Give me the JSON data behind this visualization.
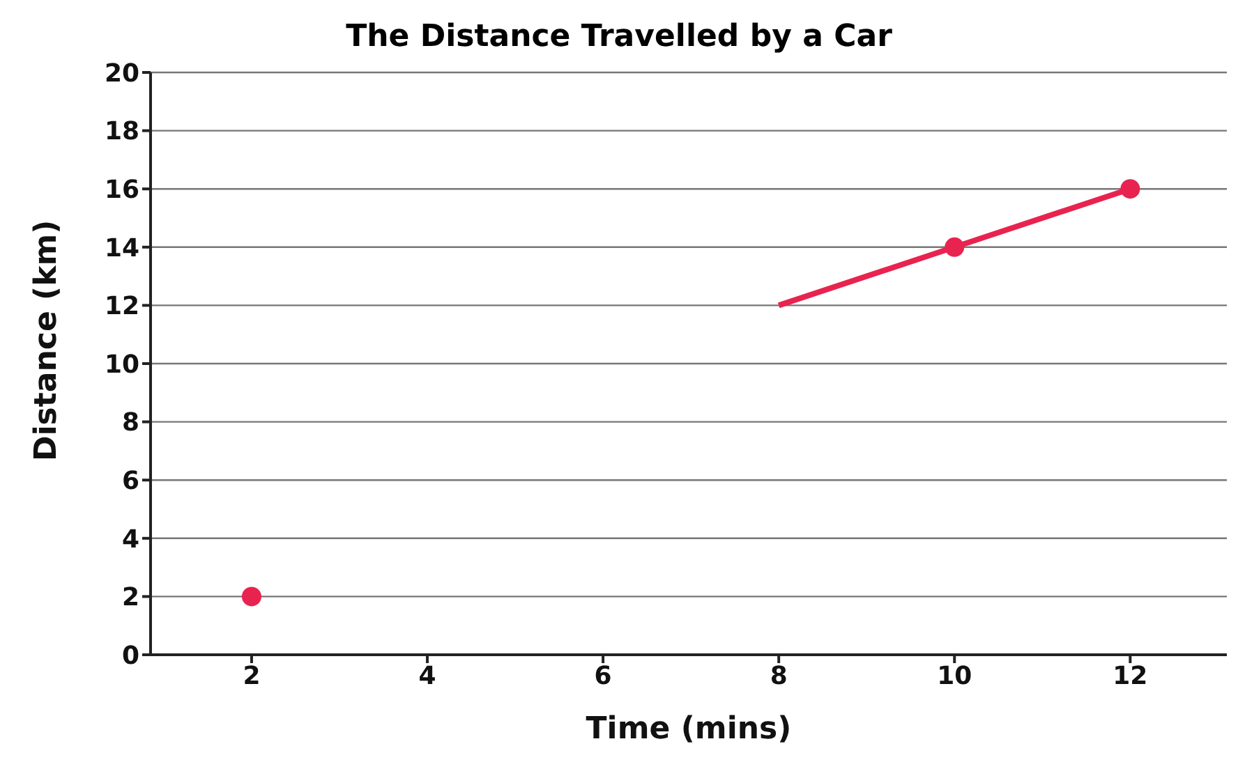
{
  "chart_data": {
    "type": "line",
    "title": "The Distance Travelled by a Car",
    "xlabel": "Time (mins)",
    "ylabel": "Distance (km)",
    "series": [
      {
        "color": "#e8234f",
        "x": [
          8,
          10,
          12
        ],
        "values": [
          12,
          14,
          16
        ],
        "marker": "none"
      },
      {
        "type": "scatter",
        "color": "#e8234f",
        "x": [
          2,
          10,
          12
        ],
        "values": [
          2,
          14,
          16
        ],
        "marker": "circle"
      }
    ],
    "xlim": [
      0.85,
      13.1
    ],
    "xticks": [
      2,
      4,
      6,
      8,
      10,
      12
    ],
    "ylim": [
      0,
      20
    ],
    "yticks": [
      0,
      2,
      4,
      6,
      8,
      10,
      12,
      14,
      16,
      18,
      20
    ],
    "grid": "y"
  }
}
